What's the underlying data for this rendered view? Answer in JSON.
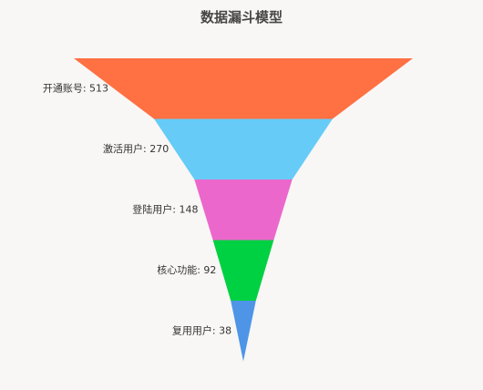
{
  "chart_data": {
    "type": "funnel",
    "title": "数据漏斗模型",
    "categories": [
      "开通账号",
      "激活用户",
      "登陆用户",
      "核心功能",
      "复用用户"
    ],
    "values": [
      513,
      270,
      148,
      92,
      38
    ],
    "colors": [
      "#ff7043",
      "#66ccf7",
      "#ec67cc",
      "#00d142",
      "#4e95e8"
    ],
    "label_position": "left",
    "legend": "none",
    "grid": false
  }
}
